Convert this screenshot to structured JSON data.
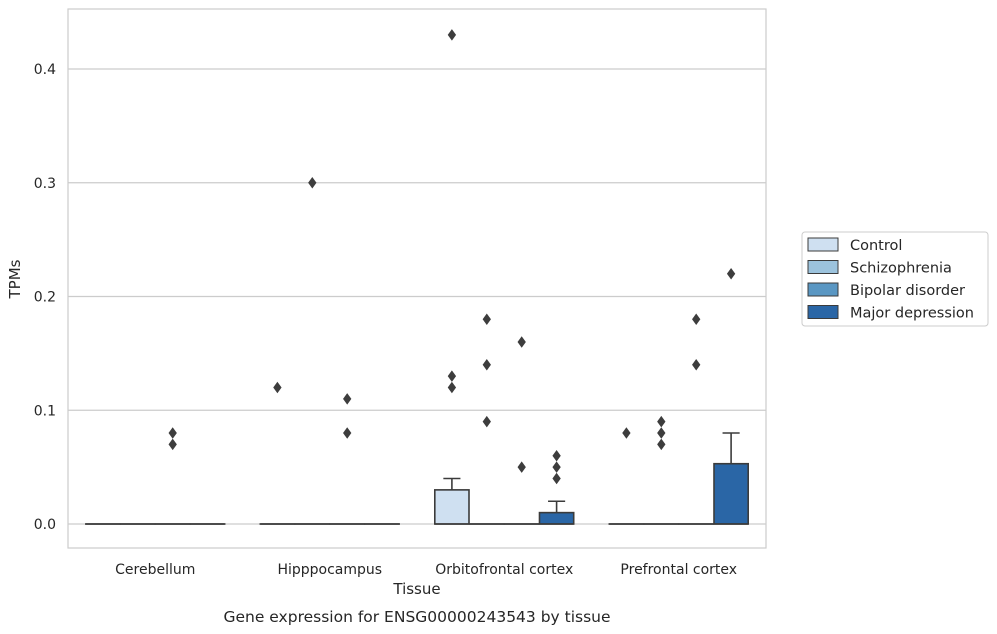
{
  "caption": "Gene expression for ENSG00000243543 by tissue",
  "chart_data": {
    "type": "box",
    "xlabel": "Tissue",
    "ylabel": "TPMs",
    "ylim": [
      -0.021,
      0.452
    ],
    "yticks": [
      "0.0",
      "0.1",
      "0.2",
      "0.3",
      "0.4"
    ],
    "ytick_values": [
      0.0,
      0.1,
      0.2,
      0.3,
      0.4
    ],
    "grid": true,
    "legend_position": "right",
    "categories": [
      "Cerebellum",
      "Hipppocampus",
      "Orbitofrontal cortex",
      "Prefrontal cortex"
    ],
    "series": [
      {
        "name": "Control",
        "color": "#cfe0f1",
        "boxes": [
          {
            "q1": 0,
            "median": 0,
            "q3": 0,
            "whisker_low": 0,
            "whisker_high": 0,
            "outliers": []
          },
          {
            "q1": 0,
            "median": 0,
            "q3": 0,
            "whisker_low": 0,
            "whisker_high": 0,
            "outliers": [
              0.12
            ]
          },
          {
            "q1": 0,
            "median": 0,
            "q3": 0.03,
            "whisker_low": 0,
            "whisker_high": 0.04,
            "outliers": [
              0.12,
              0.13,
              0.43
            ]
          },
          {
            "q1": 0,
            "median": 0,
            "q3": 0,
            "whisker_low": 0,
            "whisker_high": 0,
            "outliers": [
              0.08
            ]
          }
        ]
      },
      {
        "name": "Schizophrenia",
        "color": "#9cc3dd",
        "boxes": [
          {
            "q1": 0,
            "median": 0,
            "q3": 0,
            "whisker_low": 0,
            "whisker_high": 0,
            "outliers": []
          },
          {
            "q1": 0,
            "median": 0,
            "q3": 0,
            "whisker_low": 0,
            "whisker_high": 0,
            "outliers": [
              0.3
            ]
          },
          {
            "q1": 0,
            "median": 0,
            "q3": 0,
            "whisker_low": 0,
            "whisker_high": 0,
            "outliers": [
              0.09,
              0.14,
              0.18
            ]
          },
          {
            "q1": 0,
            "median": 0,
            "q3": 0,
            "whisker_low": 0,
            "whisker_high": 0,
            "outliers": [
              0.07,
              0.08,
              0.09
            ]
          }
        ]
      },
      {
        "name": "Bipolar disorder",
        "color": "#5a97c3",
        "boxes": [
          {
            "q1": 0,
            "median": 0,
            "q3": 0,
            "whisker_low": 0,
            "whisker_high": 0,
            "outliers": [
              0.07,
              0.08
            ]
          },
          {
            "q1": 0,
            "median": 0,
            "q3": 0,
            "whisker_low": 0,
            "whisker_high": 0,
            "outliers": [
              0.08,
              0.11
            ]
          },
          {
            "q1": 0,
            "median": 0,
            "q3": 0,
            "whisker_low": 0,
            "whisker_high": 0,
            "outliers": [
              0.05,
              0.16
            ]
          },
          {
            "q1": 0,
            "median": 0,
            "q3": 0,
            "whisker_low": 0,
            "whisker_high": 0,
            "outliers": [
              0.14,
              0.18
            ]
          }
        ]
      },
      {
        "name": "Major depression",
        "color": "#2a66a6",
        "boxes": [
          {
            "q1": 0,
            "median": 0,
            "q3": 0,
            "whisker_low": 0,
            "whisker_high": 0,
            "outliers": []
          },
          {
            "q1": 0,
            "median": 0,
            "q3": 0,
            "whisker_low": 0,
            "whisker_high": 0,
            "outliers": []
          },
          {
            "q1": 0,
            "median": 0,
            "q3": 0.01,
            "whisker_low": 0,
            "whisker_high": 0.02,
            "outliers": [
              0.04,
              0.05,
              0.06
            ]
          },
          {
            "q1": 0,
            "median": 0,
            "q3": 0.053,
            "whisker_low": 0,
            "whisker_high": 0.08,
            "outliers": [
              0.22
            ]
          }
        ]
      }
    ]
  }
}
